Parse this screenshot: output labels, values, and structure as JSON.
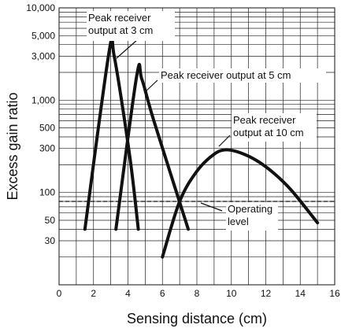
{
  "chart_data": {
    "type": "line",
    "xlabel": "Sensing distance (cm)",
    "ylabel": "Excess gain ratio",
    "xlim": [
      0,
      16
    ],
    "ylim": [
      10,
      10000
    ],
    "y_scale": "log",
    "grid": true,
    "x_ticks": [
      0,
      2,
      4,
      6,
      8,
      10,
      12,
      14,
      16
    ],
    "x_tick_labels": [
      "0",
      "2",
      "4",
      "6",
      "8",
      "10",
      "12",
      "14",
      "16"
    ],
    "y_tick_values": [
      10000,
      5000,
      3000,
      1000,
      500,
      300,
      100,
      50,
      30
    ],
    "y_tick_labels": [
      "10,000",
      "5,000",
      "3,000",
      "1,000",
      "500",
      "300",
      "100",
      "50",
      "30"
    ],
    "series": [
      {
        "x": [
          1.5,
          2.9,
          3.2,
          4.1,
          4.6
        ],
        "y": [
          40,
          3300,
          3000,
          250,
          40
        ]
      },
      {
        "x": [
          3.3,
          4.5,
          4.8,
          5.5,
          7.5
        ],
        "y": [
          40,
          1800,
          1700,
          600,
          40
        ]
      },
      {
        "x": [
          6.0,
          7.0,
          8.0,
          9.0,
          9.7,
          10.5,
          11.5,
          12.5,
          13.5,
          15.0
        ],
        "y": [
          20,
          80,
          170,
          260,
          290,
          270,
          220,
          160,
          105,
          47
        ]
      }
    ],
    "reference_lines": [
      {
        "style": "dashed",
        "y": 80
      }
    ],
    "annotations": [
      {
        "text_lines": [
          "Peak receiver",
          "output at 3 cm"
        ]
      },
      {
        "text_lines": [
          "Peak receiver output at 5 cm"
        ]
      },
      {
        "text_lines": [
          "Peak receiver",
          "output at 10 cm"
        ]
      },
      {
        "text_lines": [
          "Operating",
          "level"
        ]
      }
    ]
  }
}
